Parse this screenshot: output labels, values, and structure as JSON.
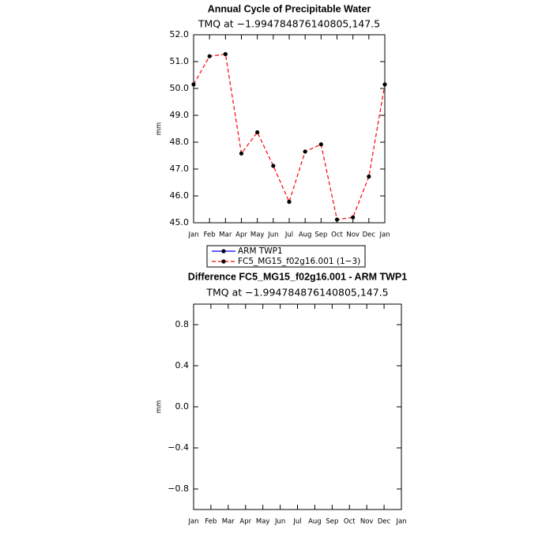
{
  "chart_data": [
    {
      "type": "line",
      "title": "Annual Cycle of Precipitable Water",
      "subtitle": "TMQ at −1.994784876140805,147.5",
      "y_label": "mm",
      "categories": [
        "Jan",
        "Feb",
        "Mar",
        "Apr",
        "May",
        "Jun",
        "Jul",
        "Aug",
        "Sep",
        "Oct",
        "Nov",
        "Dec",
        "Jan"
      ],
      "series": [
        {
          "name": "ARM TWP1",
          "color": "#0000ff",
          "line_style": "solid",
          "marker_color": "#000000",
          "values": [
            null,
            null,
            null,
            null,
            null,
            null,
            null,
            null,
            null,
            null,
            null,
            null,
            null
          ]
        },
        {
          "name": "FC5_MG15_f02g16.001 (1−3)",
          "color": "#ff0000",
          "line_style": "dashed",
          "marker_color": "#000000",
          "values": [
            50.15,
            51.2,
            51.28,
            47.58,
            48.37,
            47.12,
            45.78,
            47.65,
            47.92,
            45.12,
            45.2,
            46.72,
            50.15
          ]
        }
      ],
      "ylim": [
        45,
        52
      ],
      "yticks": [
        {
          "value": 45,
          "label": "45.0"
        },
        {
          "value": 46,
          "label": "46.0"
        },
        {
          "value": 47,
          "label": "47.0"
        },
        {
          "value": 48,
          "label": "48.0"
        },
        {
          "value": 49,
          "label": "49.0"
        },
        {
          "value": 50,
          "label": "50.0"
        },
        {
          "value": 51,
          "label": "51.0"
        },
        {
          "value": 52,
          "label": "52.0"
        }
      ],
      "legend": "bottom"
    },
    {
      "type": "line",
      "title": "Difference FC5_MG15_f02g16.001 - ARM TWP1",
      "subtitle": "TMQ at −1.994784876140805,147.5",
      "y_label": "mm",
      "categories": [
        "Jan",
        "Feb",
        "Mar",
        "Apr",
        "May",
        "Jun",
        "Jul",
        "Aug",
        "Sep",
        "Oct",
        "Nov",
        "Dec",
        "Jan"
      ],
      "values": [
        null,
        null,
        null,
        null,
        null,
        null,
        null,
        null,
        null,
        null,
        null,
        null,
        null
      ],
      "color": "#000000",
      "ylim": [
        -1,
        1
      ],
      "yticks": [
        {
          "value": 0.8,
          "label": "0.8"
        },
        {
          "value": 0.4,
          "label": "0.4"
        },
        {
          "value": 0,
          "label": "0.0"
        },
        {
          "value": -0.4,
          "label": "−0.4"
        },
        {
          "value": -0.8,
          "label": "−0.8"
        }
      ]
    }
  ]
}
